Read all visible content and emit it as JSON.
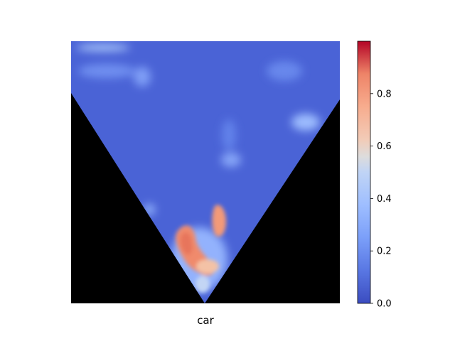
{
  "chart_data": {
    "type": "heatmap",
    "title": "",
    "xlabel": "car",
    "ylabel": "",
    "colormap": "coolwarm",
    "value_range": [
      0.0,
      1.0
    ],
    "colorbar": {
      "ticks": [
        0.0,
        0.2,
        0.4,
        0.6,
        0.8
      ],
      "tick_labels": [
        "0.0",
        "0.2",
        "0.4",
        "0.6",
        "0.8"
      ]
    },
    "masked_region_color": "#000000",
    "background_level": 0.08,
    "hotspots": [
      {
        "label": "lower-left peak",
        "value": 0.8
      },
      {
        "label": "lower-right peak",
        "value": 0.72
      },
      {
        "label": "right edge blob",
        "value": 0.32
      },
      {
        "label": "top-left streak",
        "value": 0.3
      },
      {
        "label": "center small blob",
        "value": 0.25
      }
    ]
  }
}
